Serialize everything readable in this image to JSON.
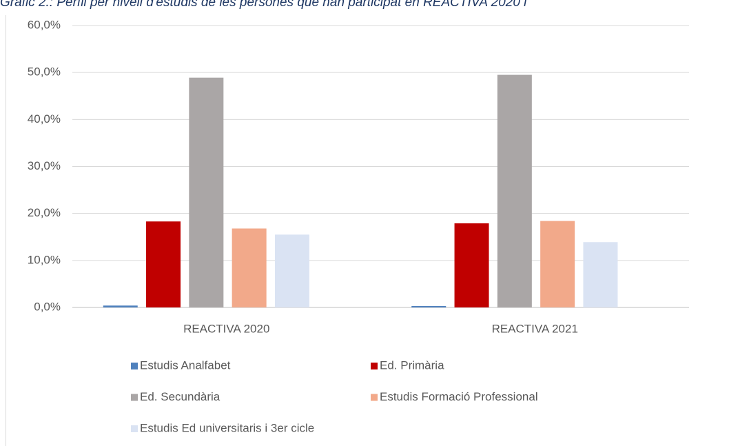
{
  "chart_data": {
    "type": "bar",
    "title": "Gràfic 2.: Perfil per nivell d'estudis de les persones que han participat en REACTIVA 2020 i",
    "categories": [
      "REACTIVA 2020",
      "REACTIVA 2021"
    ],
    "series": [
      {
        "name": "Estudis Analfabet",
        "color": "#4f81bd",
        "values": [
          0.4,
          0.3
        ]
      },
      {
        "name": "Ed. Primària",
        "color": "#c00000",
        "values": [
          18.3,
          17.9
        ]
      },
      {
        "name": "Ed. Secundària",
        "color": "#aaa6a6",
        "values": [
          48.9,
          49.5
        ]
      },
      {
        "name": "Estudis Formació Professional",
        "color": "#f2a98a",
        "values": [
          16.8,
          18.4
        ]
      },
      {
        "name": "Estudis Ed universitaris i 3er cicle",
        "color": "#dae3f3",
        "values": [
          15.5,
          13.9
        ]
      }
    ],
    "ylim": [
      0,
      60
    ],
    "yticks": [
      {
        "value": 0,
        "label": "0,0%"
      },
      {
        "value": 10,
        "label": "10,0%"
      },
      {
        "value": 20,
        "label": "20,0%"
      },
      {
        "value": 30,
        "label": "30,0%"
      },
      {
        "value": 40,
        "label": "40,0%"
      },
      {
        "value": 50,
        "label": "50,0%"
      },
      {
        "value": 60,
        "label": "60,0%"
      }
    ],
    "grid": true,
    "legend": "bottom"
  }
}
